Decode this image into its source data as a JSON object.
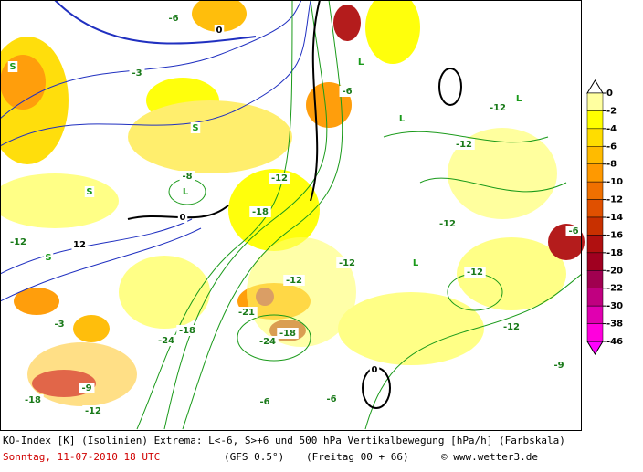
{
  "map": {
    "contour_labels": [
      "0",
      "-6",
      "-3",
      "S",
      "S",
      "-6",
      "-12",
      "-12",
      "L",
      "L",
      "L",
      "-8",
      "0",
      "-12",
      "12",
      "S",
      "-12",
      "-12",
      "-12",
      "-18",
      "L",
      "-12",
      "-6",
      "-12",
      "-18",
      "-24",
      "-18",
      "-24",
      "-3",
      "0",
      "-9",
      "-18",
      "-12",
      "-6",
      "-12",
      "-9",
      "L",
      "S",
      "-21",
      "-6"
    ]
  },
  "colorbar": {
    "ticks": [
      0,
      -2,
      -4,
      -6,
      -8,
      -10,
      -12,
      -14,
      -16,
      -18,
      -20,
      -22,
      -30,
      -38,
      -46
    ],
    "colors": [
      "#ffffa0",
      "#ffff00",
      "#ffdd00",
      "#ffbb00",
      "#ff9900",
      "#f07000",
      "#e05000",
      "#c83000",
      "#b01010",
      "#a00020",
      "#a00050",
      "#c00080",
      "#e000b0",
      "#ff00dd"
    ],
    "top_color": "#ffffff",
    "bottom_color": "#ff00ff"
  },
  "footer": {
    "line1": "KO-Index [K] (Isolinien) Extrema: L<-6, S>+6 und 500 hPa Vertikalbewegung [hPa/h] (Farbskala)",
    "date": "Sonntag, 11-07-2010  18 UTC",
    "model": "(GFS 0.5°)",
    "run": "(Freitag 00 + 66)",
    "credit": "© www.wetter3.de"
  }
}
